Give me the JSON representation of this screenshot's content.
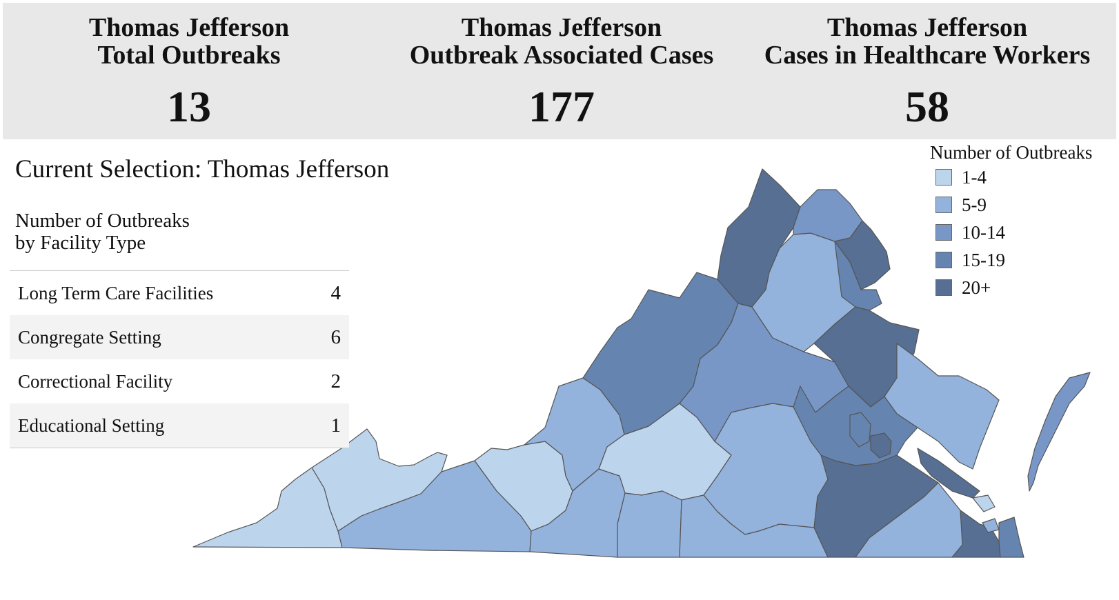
{
  "banner": {
    "kpis": [
      {
        "title_line1": "Thomas Jefferson",
        "title_line2": "Total Outbreaks",
        "value": "13"
      },
      {
        "title_line1": "Thomas Jefferson",
        "title_line2": "Outbreak Associated Cases",
        "value": "177"
      },
      {
        "title_line1": "Thomas Jefferson",
        "title_line2": "Cases in Healthcare Workers",
        "value": "58"
      }
    ]
  },
  "selection": {
    "label": "Current Selection: Thomas Jefferson"
  },
  "facility": {
    "heading_line1": "Number of Outbreaks",
    "heading_line2": "by Facility Type",
    "rows": [
      {
        "label": "Long Term Care Facilities",
        "value": "4"
      },
      {
        "label": "Congregate Setting",
        "value": "6"
      },
      {
        "label": "Correctional Facility",
        "value": "2"
      },
      {
        "label": "Educational Setting",
        "value": "1"
      }
    ]
  },
  "legend": {
    "title": "Number of Outbreaks",
    "items": [
      {
        "label": "1-4",
        "color": "#bcd4ec"
      },
      {
        "label": "5-9",
        "color": "#93b2dc"
      },
      {
        "label": "10-14",
        "color": "#7897c7"
      },
      {
        "label": "15-19",
        "color": "#6584b0"
      },
      {
        "label": "20+",
        "color": "#566f92"
      }
    ]
  },
  "map": {
    "bins": {
      "b1": "#bcd4ec",
      "b2": "#93b2dc",
      "b3": "#7897c7",
      "b4": "#6584b0",
      "b5": "#566f92"
    },
    "stroke": "#555555"
  }
}
